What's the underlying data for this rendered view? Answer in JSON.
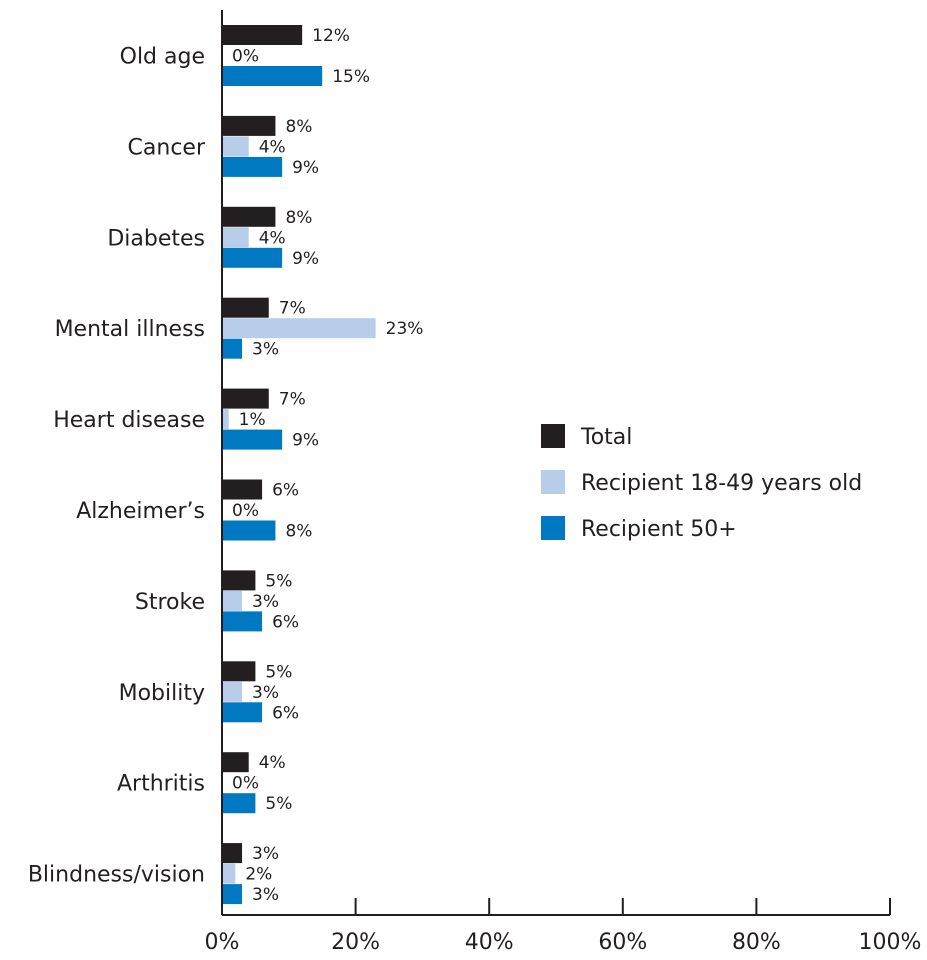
{
  "chart_data": {
    "type": "bar",
    "orientation": "horizontal",
    "categories": [
      "Old age",
      "Cancer",
      "Diabetes",
      "Mental illness",
      "Heart disease",
      "Alzheimer’s",
      "Stroke",
      "Mobility",
      "Arthritis",
      "Blindness/vision"
    ],
    "series": [
      {
        "name": "Total",
        "color": "#231f20",
        "values": [
          12,
          8,
          8,
          7,
          7,
          6,
          5,
          5,
          4,
          3
        ],
        "labels": [
          "12%",
          "8%",
          "8%",
          "7%",
          "7%",
          "6%",
          "5%",
          "5%",
          "4%",
          "3%"
        ]
      },
      {
        "name": "Recipient 18-49 years old",
        "color": "#b8cde9",
        "values": [
          0,
          4,
          4,
          23,
          1,
          0,
          3,
          3,
          0,
          2
        ],
        "labels": [
          "0%",
          "4%",
          "4%",
          "23%",
          "1%",
          "0%",
          "3%",
          "3%",
          "0%",
          "2%"
        ]
      },
      {
        "name": "Recipient 50+",
        "color": "#0079c2",
        "values": [
          15,
          9,
          9,
          3,
          9,
          8,
          6,
          6,
          5,
          3
        ],
        "labels": [
          "15%",
          "9%",
          "9%",
          "3%",
          "9%",
          "8%",
          "6%",
          "6%",
          "5%",
          "3%"
        ]
      }
    ],
    "xlim": [
      0,
      100
    ],
    "x_ticks": [
      0,
      20,
      40,
      60,
      80,
      100
    ],
    "x_tick_labels": [
      "0%",
      "20%",
      "40%",
      "60%",
      "80%",
      "100%"
    ],
    "title": "",
    "xlabel": "",
    "ylabel": "",
    "grid": false,
    "legend_position": "right"
  }
}
